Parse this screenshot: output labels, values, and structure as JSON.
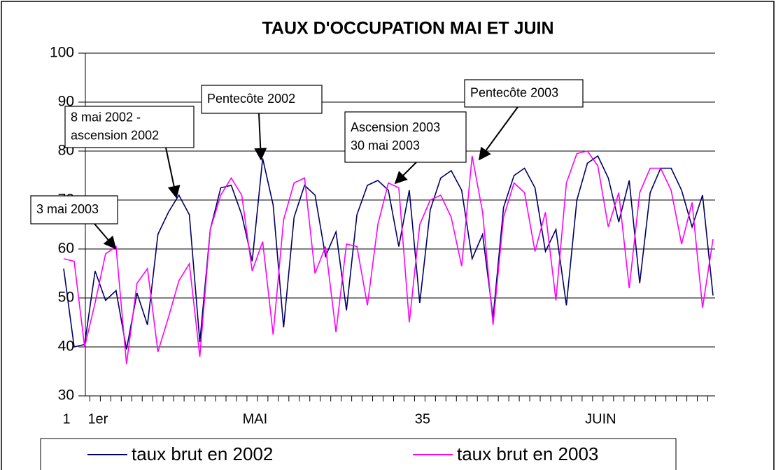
{
  "chart_data": {
    "type": "line",
    "title": "TAUX D'OCCUPATION MAI ET JUIN",
    "categories": [
      "1",
      null,
      null,
      "1er",
      null,
      null,
      null,
      null,
      null,
      null,
      null,
      null,
      null,
      null,
      null,
      null,
      null,
      null,
      "MAI",
      null,
      null,
      null,
      null,
      null,
      null,
      null,
      null,
      null,
      null,
      null,
      null,
      null,
      null,
      null,
      "35",
      null,
      null,
      null,
      null,
      null,
      null,
      null,
      null,
      null,
      null,
      null,
      null,
      null,
      null,
      null,
      null,
      "JUIN",
      null,
      null,
      null,
      null,
      null,
      null,
      null,
      null,
      null,
      null,
      null
    ],
    "series": [
      {
        "name": "taux brut en 2002",
        "color": "#000066",
        "values": [
          56,
          40,
          40.5,
          55.5,
          49.5,
          51.5,
          39.5,
          51,
          44.5,
          63,
          67.5,
          71,
          67,
          41,
          64,
          72.5,
          73,
          67,
          57.5,
          78.5,
          69,
          44,
          66.5,
          73,
          71,
          58.5,
          63.5,
          47.5,
          67,
          73,
          74,
          72,
          60.5,
          72,
          49,
          68,
          74.5,
          76,
          72,
          58,
          63,
          46,
          68.5,
          75,
          76.5,
          72.5,
          59.5,
          64,
          48.5,
          70,
          77.5,
          79,
          74.5,
          65.5,
          74,
          53,
          71.5,
          76.5,
          76.5,
          72,
          64.5,
          71,
          50.5
        ]
      },
      {
        "name": "taux brut en 2003",
        "color": "#ff00ff",
        "values": [
          58,
          57.5,
          40,
          49,
          59,
          60.5,
          36.5,
          53,
          56,
          39,
          46,
          53.5,
          57,
          38,
          64,
          71,
          74.5,
          71,
          55.5,
          61.5,
          42.5,
          66,
          73.5,
          74.5,
          55,
          60.5,
          43,
          61,
          60.5,
          48.5,
          65,
          73.5,
          72.5,
          45,
          65,
          70,
          71,
          66.5,
          56.5,
          79,
          67.5,
          44.5,
          66.5,
          73.5,
          71.5,
          59.5,
          67.5,
          49.5,
          73.5,
          79.5,
          80,
          77,
          64.5,
          71.5,
          52,
          71.5,
          76.5,
          76.5,
          72,
          61,
          69.5,
          48,
          62
        ]
      }
    ],
    "ylim": [
      30,
      100
    ],
    "yticks": [
      30,
      40,
      50,
      60,
      70,
      80,
      90,
      100
    ],
    "grid": true,
    "legend": "bottom",
    "annotations": [
      {
        "lines": [
          "3 mai 2003"
        ]
      },
      {
        "lines": [
          "8 mai 2002 -",
          "ascension 2002"
        ]
      },
      {
        "lines": [
          "Pentecôte 2002"
        ]
      },
      {
        "lines": [
          "Ascension 2003",
          "30 mai 2003"
        ]
      },
      {
        "lines": [
          "Pentecôte 2003"
        ]
      }
    ]
  }
}
